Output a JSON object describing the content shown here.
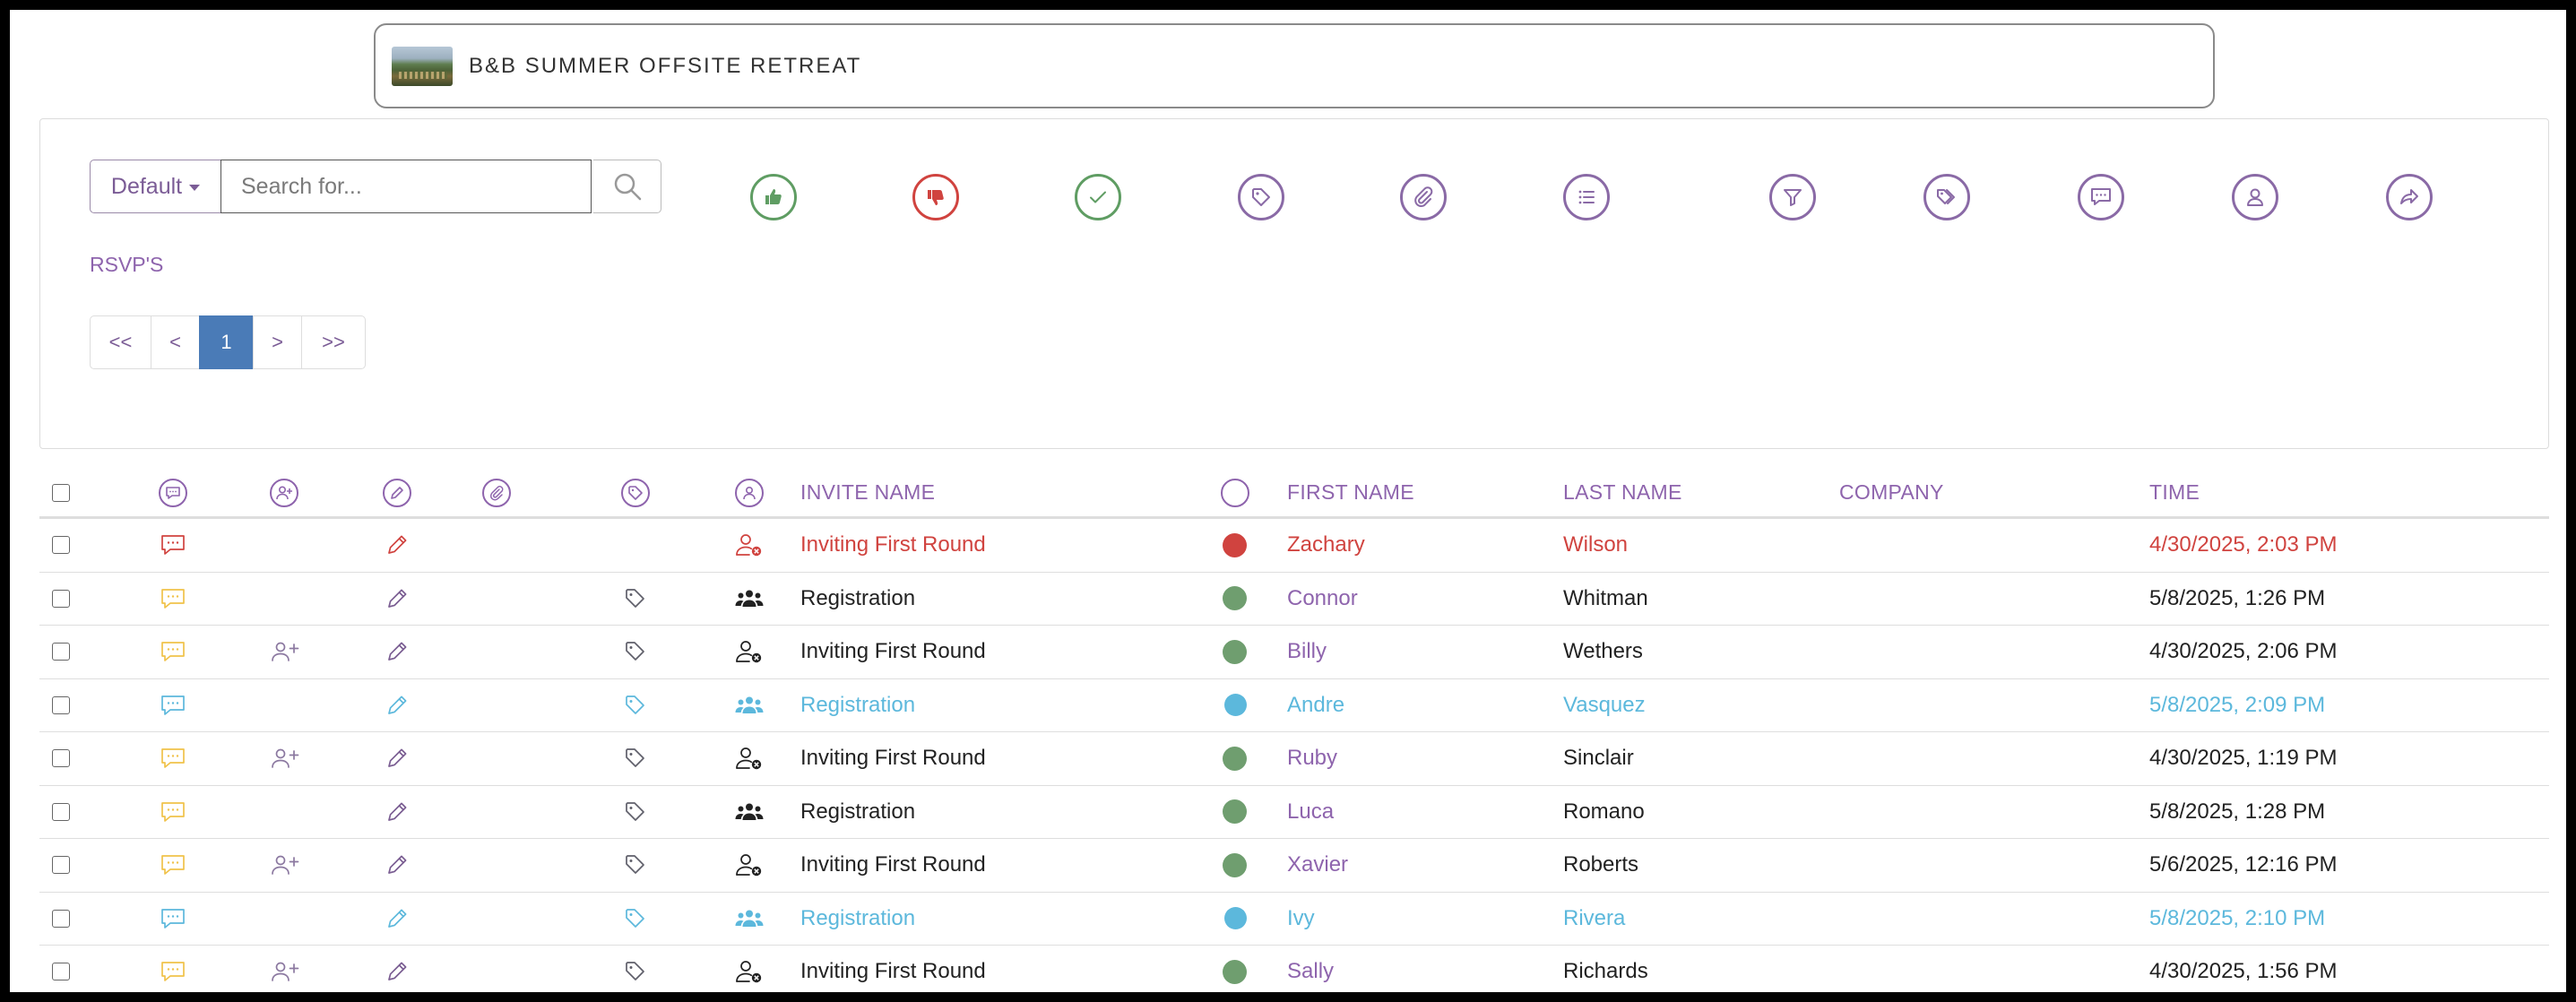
{
  "event": {
    "title": "B&B SUMMER OFFSITE RETREAT"
  },
  "toolbar": {
    "view_select": "Default",
    "search_placeholder": "Search for...",
    "section_label": "RSVP'S",
    "tools": [
      {
        "name": "thumbs-up-icon",
        "color": "#5f9d63"
      },
      {
        "name": "thumbs-down-icon",
        "color": "#d0433f"
      },
      {
        "name": "check-icon",
        "color": "#5f9d63"
      },
      {
        "name": "tag-icon",
        "color": "#8a6aa6"
      },
      {
        "name": "paperclip-icon",
        "color": "#8a6aa6"
      },
      {
        "name": "list-icon",
        "color": "#8a6aa6"
      },
      {
        "name": "filter-icon",
        "color": "#8a6aa6"
      },
      {
        "name": "tags-icon",
        "color": "#8a6aa6"
      },
      {
        "name": "comment-icon",
        "color": "#8a6aa6"
      },
      {
        "name": "user-icon",
        "color": "#8a6aa6"
      },
      {
        "name": "share-icon",
        "color": "#8a6aa6"
      }
    ]
  },
  "pagination": {
    "first": "<<",
    "prev": "<",
    "current": "1",
    "next": ">",
    "last": ">>"
  },
  "table": {
    "headers": {
      "invite_name": "INVITE NAME",
      "first_name": "FIRST NAME",
      "last_name": "LAST NAME",
      "company": "COMPANY",
      "time": "TIME"
    },
    "rows": [
      {
        "invite": "Inviting First Round",
        "first": "Zachary",
        "last": "Wilson",
        "company": "",
        "time": "4/30/2025, 2:03 PM",
        "state": "declined",
        "add_user": false,
        "tag": false,
        "people": "user-x"
      },
      {
        "invite": "Registration",
        "first": "Connor",
        "last": "Whitman",
        "company": "",
        "time": "5/8/2025, 1:26 PM",
        "state": "accepted",
        "add_user": false,
        "tag": true,
        "people": "group"
      },
      {
        "invite": "Inviting First Round",
        "first": "Billy",
        "last": "Wethers",
        "company": "",
        "time": "4/30/2025, 2:06 PM",
        "state": "accepted",
        "add_user": true,
        "tag": true,
        "people": "user-x"
      },
      {
        "invite": "Registration",
        "first": "Andre",
        "last": "Vasquez",
        "company": "",
        "time": "5/8/2025, 2:09 PM",
        "state": "pending",
        "add_user": false,
        "tag": true,
        "people": "group"
      },
      {
        "invite": "Inviting First Round",
        "first": "Ruby",
        "last": "Sinclair",
        "company": "",
        "time": "4/30/2025, 1:19 PM",
        "state": "accepted",
        "add_user": true,
        "tag": true,
        "people": "user-x"
      },
      {
        "invite": "Registration",
        "first": "Luca",
        "last": "Romano",
        "company": "",
        "time": "5/8/2025, 1:28 PM",
        "state": "accepted",
        "add_user": false,
        "tag": true,
        "people": "group"
      },
      {
        "invite": "Inviting First Round",
        "first": "Xavier",
        "last": "Roberts",
        "company": "",
        "time": "5/6/2025, 12:16 PM",
        "state": "accepted",
        "add_user": true,
        "tag": true,
        "people": "user-x"
      },
      {
        "invite": "Registration",
        "first": "Ivy",
        "last": "Rivera",
        "company": "",
        "time": "5/8/2025, 2:10 PM",
        "state": "pending",
        "add_user": false,
        "tag": true,
        "people": "group"
      },
      {
        "invite": "Inviting First Round",
        "first": "Sally",
        "last": "Richards",
        "company": "",
        "time": "4/30/2025, 1:56 PM",
        "state": "accepted",
        "add_user": true,
        "tag": true,
        "people": "user-x"
      }
    ]
  },
  "colors": {
    "accent": "#8e64ad",
    "declined": "#d0433f",
    "accepted": "#6f9e6f",
    "pending": "#5cb8dc",
    "comment_yellow": "#f0c24a",
    "active_page": "#4a7bb7",
    "text": "#222222"
  }
}
